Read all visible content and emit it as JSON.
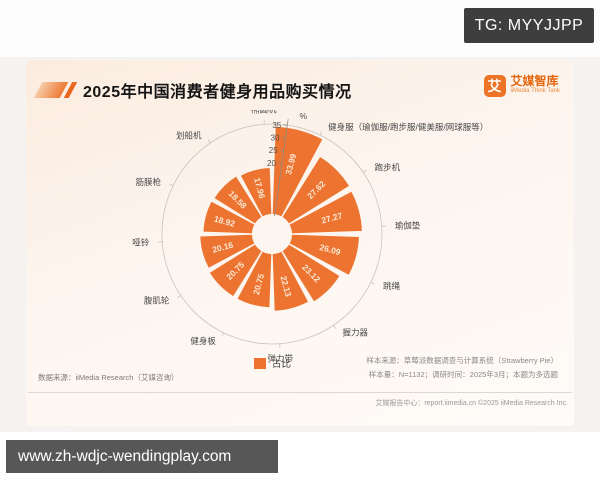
{
  "watermarks": {
    "top": "TG: MYYJJPP",
    "bottom": "www.zh-wdjc-wendingplay.com"
  },
  "header": {
    "title": "2025年中国消费者健身用品购买情况",
    "logo_glyph": "艾",
    "logo_name": "艾媒智库",
    "logo_tagline": "iiMedia Think Tank"
  },
  "chart_data": {
    "type": "rose-pie",
    "title": "2025年中国消费者健身用品购买情况",
    "unit_label": "%",
    "order": "clockwise-from-top",
    "categories": [
      "健身服（瑜伽服/跑步服/健美服/网球服等）",
      "跑步机",
      "瑜伽垫",
      "跳绳",
      "握力器",
      "弹力带",
      "健身板",
      "腹肌轮",
      "哑铃",
      "筋膜枪",
      "划船机",
      "椭圆机"
    ],
    "values": [
      33.99,
      27.62,
      27.27,
      26.09,
      23.12,
      22.13,
      20.75,
      20.75,
      20.16,
      18.92,
      18.58,
      17.96
    ],
    "axis": {
      "ticks": [
        20,
        25,
        30,
        35
      ],
      "max": 35
    },
    "legend": [
      {
        "label": "占比",
        "color": "#ec7430"
      }
    ],
    "colors": {
      "wedge": "#ec7430",
      "value_text": "#fbe6d2",
      "label_text": "#4a4a4a",
      "axis_text": "#4f4f4f",
      "axis_line": "#8f8a84",
      "ring": "#c9c3bc"
    }
  },
  "footnotes": {
    "data_source": "数据来源：iiMedia Research（艾媒咨询）",
    "sample_source": "样本来源：草莓派数据调查与计算系统（Strawberry Pie）",
    "sample_info": "样本量：N=1132；调研时间：2025年3月；本题为多选题",
    "report_center": "艾媒报告中心：report.iimedia.cn ©2025 iiMedia Research Inc."
  }
}
